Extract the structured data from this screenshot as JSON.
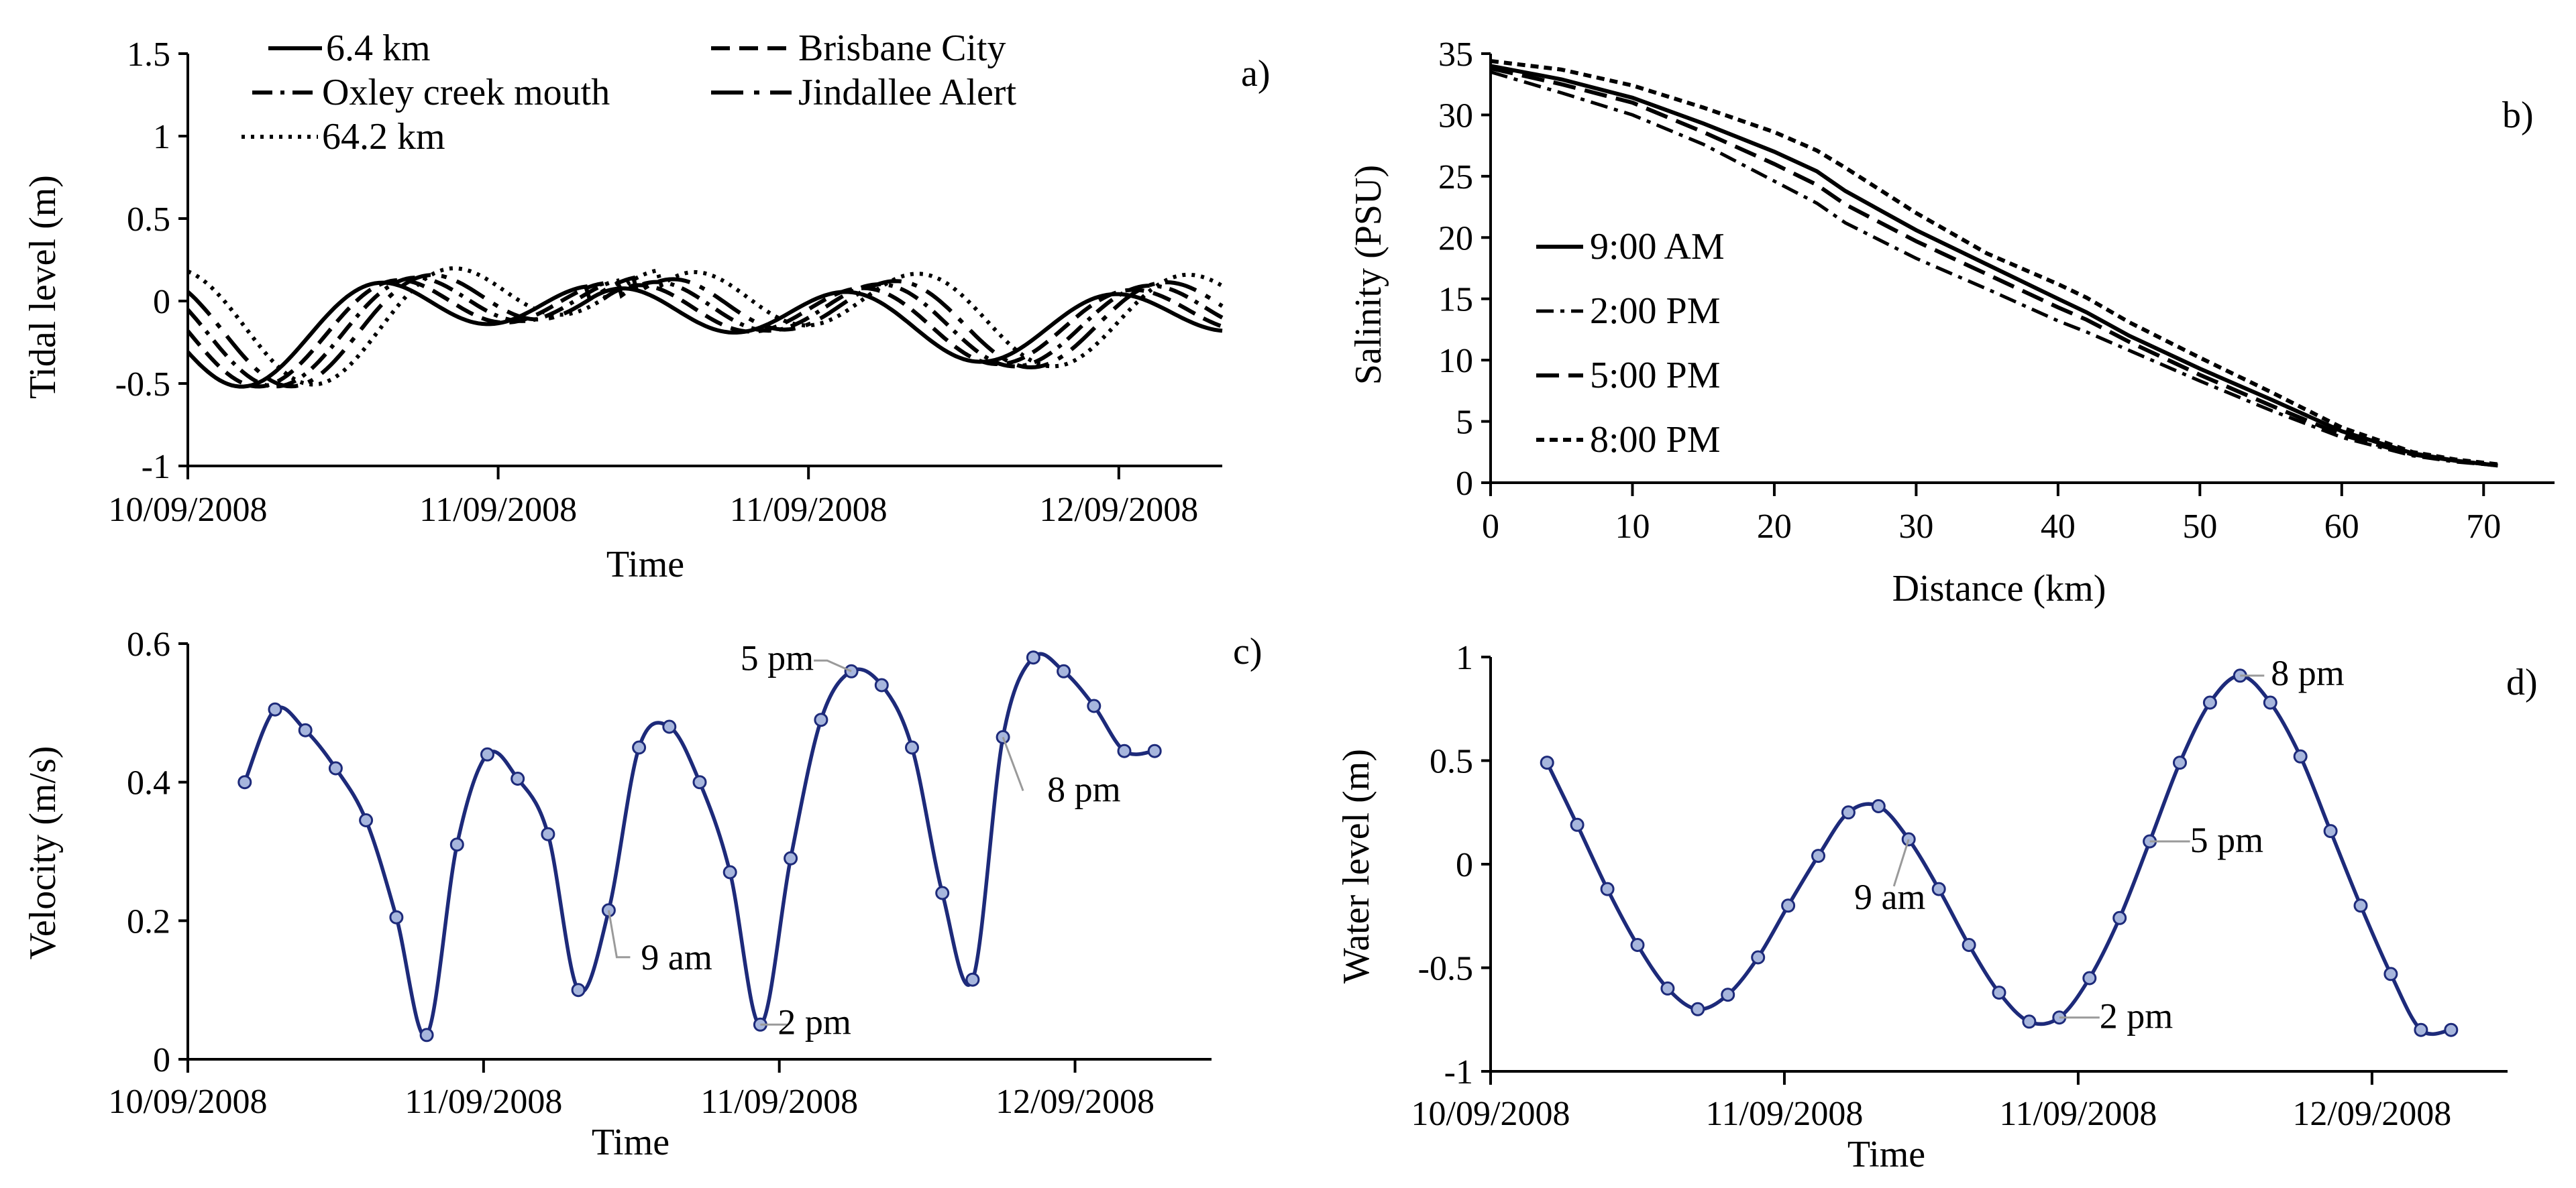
{
  "chart_data": [
    {
      "id": "a",
      "type": "line",
      "panel_label": "a)",
      "xlabel": "Time",
      "ylabel": "Tidal level (m)",
      "xlim": [
        0,
        52
      ],
      "ylim": [
        -1,
        1.5
      ],
      "x_unit": "hours from 10/09/2008 12:00",
      "y_ticks": [
        "-1",
        "-0.5",
        "0",
        "0.5",
        "1",
        "1.5"
      ],
      "x_ticks": [
        {
          "x": 0,
          "label": "10/09/2008"
        },
        {
          "x": 15.6,
          "label": "11/09/2008"
        },
        {
          "x": 31.2,
          "label": "11/09/2008"
        },
        {
          "x": 46.8,
          "label": "12/09/2008"
        }
      ],
      "series": [
        {
          "name": "6.4 km",
          "style": "solid",
          "lag": 0,
          "mean": -0.12,
          "amp1": 0.42,
          "amp2": 0.31,
          "t0": 2.7
        },
        {
          "name": "Brisbane City",
          "style": "dash",
          "lag": 0.85,
          "mean": -0.11,
          "amp1": 0.43,
          "amp2": 0.34,
          "t0": 2.7
        },
        {
          "name": "Oxley creek mouth",
          "style": "dashdot",
          "lag": 1.7,
          "mean": -0.1,
          "amp1": 0.44,
          "amp2": 0.37,
          "t0": 2.7
        },
        {
          "name": "Jindallee Alert",
          "style": "longdashdot",
          "lag": 2.5,
          "mean": -0.09,
          "amp1": 0.45,
          "amp2": 0.39,
          "t0": 2.7
        },
        {
          "name": "64.2 km",
          "style": "dotted",
          "lag": 3.6,
          "mean": -0.06,
          "amp1": 0.47,
          "amp2": 0.42,
          "t0": 2.7
        }
      ]
    },
    {
      "id": "b",
      "type": "line",
      "panel_label": "b)",
      "xlabel": "Distance (km)",
      "ylabel": "Salinity (PSU)",
      "xlim": [
        0,
        75
      ],
      "ylim": [
        0,
        35
      ],
      "x_ticks": [
        "0",
        "10",
        "20",
        "30",
        "40",
        "50",
        "60",
        "70"
      ],
      "y_ticks": [
        "0",
        "5",
        "10",
        "15",
        "20",
        "25",
        "30",
        "35"
      ],
      "x": [
        0,
        5,
        10,
        15,
        20,
        23,
        25,
        30,
        35,
        40,
        42,
        45,
        50,
        55,
        60,
        65,
        68,
        71
      ],
      "series": [
        {
          "name": "9:00 AM",
          "style": "solid",
          "values": [
            34.0,
            32.9,
            31.4,
            29.3,
            27.0,
            25.4,
            23.8,
            20.6,
            17.8,
            15.0,
            13.9,
            12.0,
            9.3,
            6.8,
            4.2,
            2.4,
            1.8,
            1.4
          ]
        },
        {
          "name": "2:00 PM",
          "style": "dashdot",
          "values": [
            33.5,
            31.8,
            30.0,
            27.6,
            24.6,
            22.8,
            21.2,
            18.3,
            15.8,
            13.2,
            12.3,
            10.8,
            8.3,
            5.9,
            3.7,
            2.2,
            1.7,
            1.4
          ]
        },
        {
          "name": "5:00 PM",
          "style": "longdash",
          "values": [
            33.8,
            32.5,
            31.0,
            28.6,
            26.0,
            24.3,
            22.7,
            19.7,
            17.0,
            14.3,
            13.3,
            11.5,
            8.8,
            6.3,
            3.9,
            2.3,
            1.8,
            1.4
          ]
        },
        {
          "name": "8:00 PM",
          "style": "shortdash",
          "values": [
            34.4,
            33.7,
            32.4,
            30.6,
            28.6,
            27.1,
            25.7,
            22.0,
            18.7,
            16.2,
            15.1,
            13.1,
            10.2,
            7.4,
            4.5,
            2.5,
            1.9,
            1.5
          ]
        }
      ]
    },
    {
      "id": "c",
      "type": "line",
      "panel_label": "c)",
      "xlabel": "Time",
      "ylabel": "Velocity (m/s)",
      "xlim": [
        0,
        54
      ],
      "ylim": [
        0,
        0.6
      ],
      "y_ticks": [
        "0",
        "0.2",
        "0.4",
        "0.6"
      ],
      "x_ticks": [
        {
          "x": 0,
          "label": "10/09/2008"
        },
        {
          "x": 15.6,
          "label": "11/09/2008"
        },
        {
          "x": 31.2,
          "label": "11/09/2008"
        },
        {
          "x": 46.8,
          "label": "12/09/2008"
        }
      ],
      "x": [
        3.0,
        4.6,
        6.2,
        7.8,
        9.4,
        11.0,
        12.6,
        14.2,
        15.8,
        17.4,
        19.0,
        20.6,
        22.2,
        23.8,
        25.4,
        27.0,
        28.6,
        30.2,
        31.8,
        33.4,
        35.0,
        36.6,
        38.2,
        39.8,
        41.4,
        43.0,
        44.6,
        46.2,
        47.8,
        49.4,
        51.0
      ],
      "values": [
        0.4,
        0.505,
        0.475,
        0.42,
        0.345,
        0.205,
        0.035,
        0.31,
        0.44,
        0.405,
        0.325,
        0.1,
        0.215,
        0.45,
        0.48,
        0.4,
        0.27,
        0.05,
        0.29,
        0.49,
        0.56,
        0.54,
        0.45,
        0.24,
        0.115,
        0.465,
        0.58,
        0.56,
        0.51,
        0.445,
        0.445
      ],
      "annotations": [
        {
          "text": "9 am",
          "point": 12
        },
        {
          "text": "2 pm",
          "point": 17
        },
        {
          "text": "5 pm",
          "point": 20
        },
        {
          "text": "8 pm",
          "point": 25
        }
      ]
    },
    {
      "id": "d",
      "type": "line",
      "panel_label": "d)",
      "xlabel": "Time",
      "ylabel": "Water level (m)",
      "xlim": [
        0,
        54
      ],
      "ylim": [
        -1,
        1
      ],
      "y_ticks": [
        "-1",
        "-0.5",
        "0",
        "0.5",
        "1"
      ],
      "x_ticks": [
        {
          "x": 0,
          "label": "10/09/2008"
        },
        {
          "x": 15.6,
          "label": "11/09/2008"
        },
        {
          "x": 31.2,
          "label": "11/09/2008"
        },
        {
          "x": 46.8,
          "label": "12/09/2008"
        }
      ],
      "x": [
        3.0,
        4.6,
        6.2,
        7.8,
        9.4,
        11.0,
        12.6,
        14.2,
        15.8,
        17.4,
        19.0,
        20.6,
        22.2,
        23.8,
        25.4,
        27.0,
        28.6,
        30.2,
        31.8,
        33.4,
        35.0,
        36.6,
        38.2,
        39.8,
        41.4,
        43.0,
        44.6,
        46.2,
        47.8,
        49.4,
        51.0
      ],
      "values": [
        0.49,
        0.19,
        -0.12,
        -0.39,
        -0.6,
        -0.7,
        -0.63,
        -0.45,
        -0.2,
        0.04,
        0.25,
        0.28,
        0.12,
        -0.12,
        -0.39,
        -0.62,
        -0.76,
        -0.74,
        -0.55,
        -0.26,
        0.11,
        0.49,
        0.78,
        0.91,
        0.78,
        0.52,
        0.16,
        -0.2,
        -0.53,
        -0.8,
        -0.8
      ],
      "annotations": [
        {
          "text": "9 am",
          "point": 12
        },
        {
          "text": "2 pm",
          "point": 17
        },
        {
          "text": "5 pm",
          "point": 20
        },
        {
          "text": "8 pm",
          "point": 23
        }
      ]
    }
  ]
}
